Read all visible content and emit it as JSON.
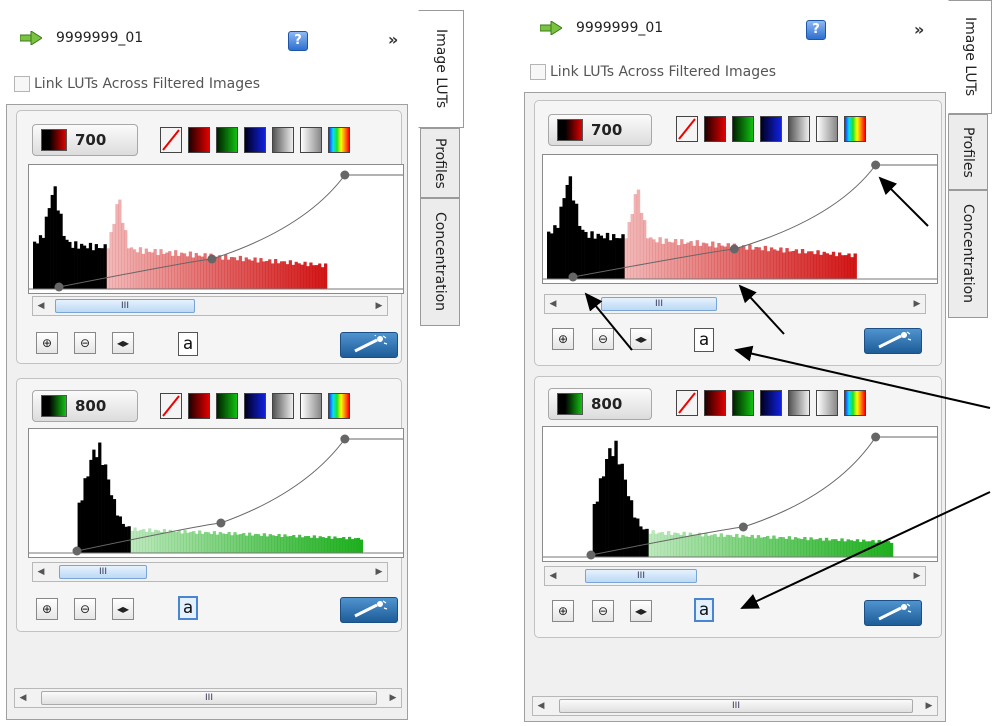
{
  "dataset_name": "9999999_01",
  "help_label": "?",
  "expand_label": "»",
  "link_luts_label": "Link LUTs Across Filtered Images",
  "tabs": [
    "Image LUTs",
    "Profiles",
    "Concentration"
  ],
  "channels": [
    {
      "value": "700",
      "color": "#cc0000",
      "swatch_gradient": "linear-gradient(90deg,#000 0%,#000 30%,#e00000 100%)"
    },
    {
      "value": "800",
      "color": "#11aa11",
      "swatch_gradient": "linear-gradient(90deg,#000 0%,#000 30%,#13c213 100%)"
    }
  ],
  "scroll_thumb_label": "III",
  "auto_label": "a",
  "lut_swatches": [
    "none",
    "red",
    "green",
    "blue",
    "gray",
    "inverse-gray",
    "rainbow"
  ],
  "icons": [
    "forward-arrow-icon",
    "help-icon",
    "expand-icon",
    "zoom-in-icon",
    "zoom-out-icon",
    "fit-width-icon",
    "auto-contrast-icon",
    "magic-wand-icon"
  ]
}
